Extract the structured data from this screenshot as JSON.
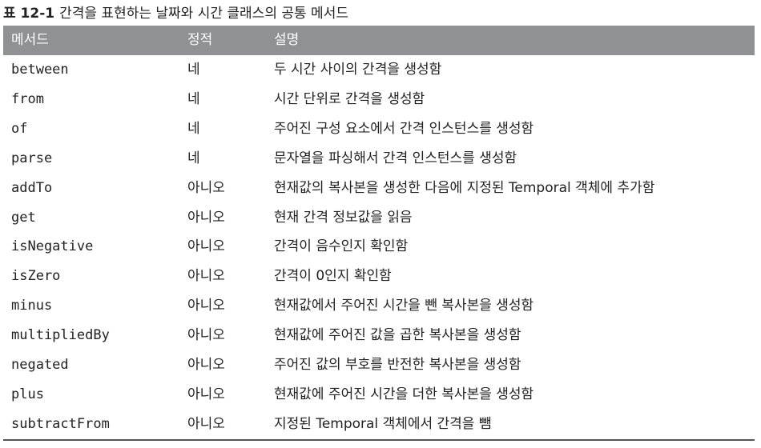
{
  "caption": {
    "number": "표 12-1",
    "text": "간격을 표현하는 날짜와 시간 클래스의 공통 메서드"
  },
  "table": {
    "headers": [
      "메서드",
      "정적",
      "설명"
    ],
    "rows": [
      [
        "between",
        "네",
        "두 시간 사이의 간격을 생성함"
      ],
      [
        "from",
        "네",
        "시간 단위로 간격을 생성함"
      ],
      [
        "of",
        "네",
        "주어진 구성 요소에서 간격 인스턴스를 생성함"
      ],
      [
        "parse",
        "네",
        "문자열을 파싱해서 간격 인스턴스를 생성함"
      ],
      [
        "addTo",
        "아니오",
        "현재값의 복사본을 생성한 다음에 지정된 Temporal 객체에 추가함"
      ],
      [
        "get",
        "아니오",
        "현재 간격 정보값을 읽음"
      ],
      [
        "isNegative",
        "아니오",
        "간격이 음수인지 확인함"
      ],
      [
        "isZero",
        "아니오",
        "간격이 0인지 확인함"
      ],
      [
        "minus",
        "아니오",
        "현재값에서 주어진 시간을 뺀 복사본을 생성함"
      ],
      [
        "multipliedBy",
        "아니오",
        "현재값에 주어진 값을 곱한 복사본을 생성함"
      ],
      [
        "negated",
        "아니오",
        "주어진 값의 부호를 반전한 복사본을 생성함"
      ],
      [
        "plus",
        "아니오",
        "현재값에 주어진 시간을 더한 복사본을 생성함"
      ],
      [
        "subtractFrom",
        "아니오",
        "지정된 Temporal 객체에서 간격을 뺌"
      ]
    ]
  }
}
